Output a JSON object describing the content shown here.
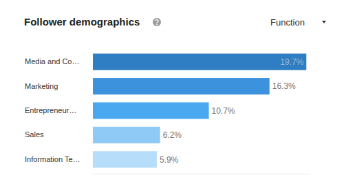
{
  "chart_data": {
    "type": "bar",
    "title": "Follower demographics",
    "annotations": [
      "Function"
    ],
    "orientation": "horizontal",
    "categories": [
      "Media and Co…",
      "Marketing",
      "Entrepreneur…",
      "Sales",
      "Information Te…"
    ],
    "values": [
      19.7,
      16.3,
      10.7,
      6.2,
      5.9
    ],
    "value_labels": [
      "19.7%",
      "16.3%",
      "10.7%",
      "6.2%",
      "5.9%"
    ],
    "colors": [
      "#2f7dc2",
      "#3d92de",
      "#4aa8f0",
      "#8fc9f5",
      "#b6defa"
    ],
    "xlim": [
      0,
      20
    ],
    "xticks": [],
    "tick_labels": false,
    "grid": false,
    "data_labels": true
  }
}
